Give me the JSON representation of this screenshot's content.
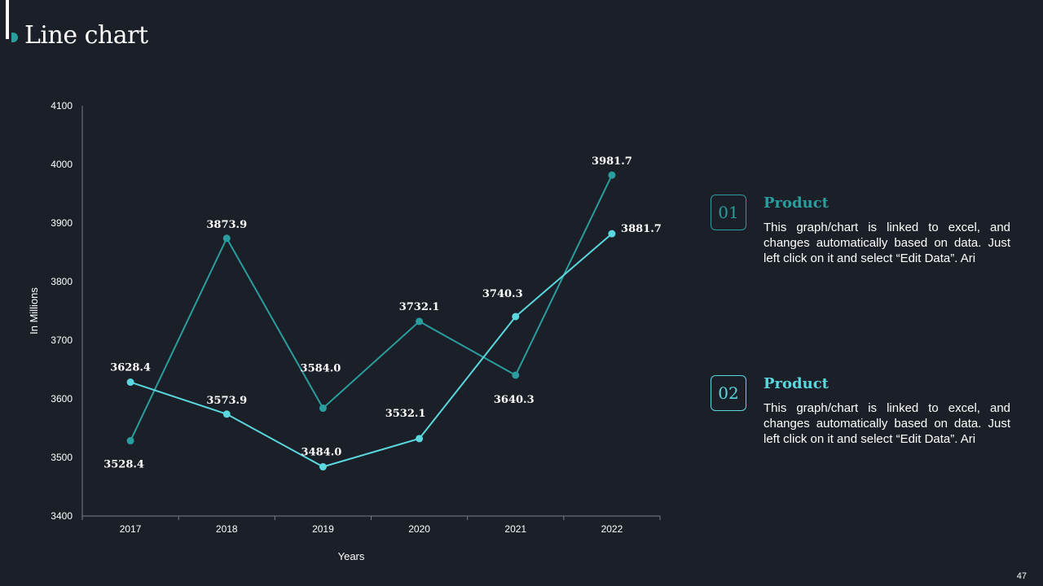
{
  "page": {
    "title": "Line chart",
    "page_number": "47",
    "colors": {
      "background": "#1b1f27",
      "series_dark": "#2a9d9f",
      "series_light": "#5ad7df"
    }
  },
  "chart_data": {
    "type": "line",
    "title": "",
    "xlabel": "Years",
    "ylabel": "In Millions",
    "categories": [
      "2017",
      "2018",
      "2019",
      "2020",
      "2021",
      "2022"
    ],
    "ylim": [
      3400,
      4100
    ],
    "yticks": [
      "3400",
      "3500",
      "3600",
      "3700",
      "3800",
      "3900",
      "4000",
      "4100"
    ],
    "grid": false,
    "series": [
      {
        "color": "#2a9d9f",
        "values": [
          3528.4,
          3873.9,
          3584.0,
          3732.1,
          3640.3,
          3981.7
        ],
        "labels": [
          "3528.4",
          "3873.9",
          "3584.0",
          "3732.1",
          "3640.3",
          "3981.7"
        ]
      },
      {
        "color": "#5ad7df",
        "values": [
          3628.4,
          3573.9,
          3484.0,
          3532.1,
          3740.3,
          3881.7
        ],
        "labels": [
          "3628.4",
          "3573.9",
          "3484.0",
          "3532.1",
          "3740.3",
          "3881.7"
        ]
      }
    ]
  },
  "legend": [
    {
      "number": "01",
      "heading": "Product",
      "color": "#2a9d9f",
      "text": "This graph/chart is linked to excel, and changes automatically based on data. Just left click on it and select “Edit Data”. Ari"
    },
    {
      "number": "02",
      "heading": "Product",
      "color": "#5ad7df",
      "text": "This graph/chart is linked to excel, and changes automatically based on data. Just left click on it and select “Edit Data”. Ari"
    }
  ]
}
